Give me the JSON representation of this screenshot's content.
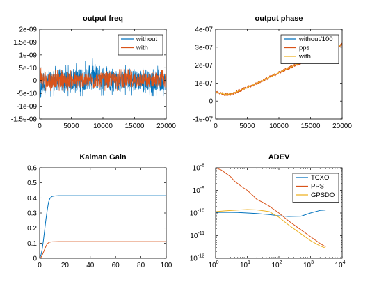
{
  "colors": {
    "blue": "#0072bd",
    "orange": "#d95319",
    "yellow": "#edb120",
    "axis": "#000000",
    "background": "#ffffff"
  },
  "chart_data": [
    {
      "id": "output_freq",
      "type": "line",
      "title": "output freq",
      "xlim": [
        0,
        20000
      ],
      "ylim": [
        -1.5e-09,
        2e-09
      ],
      "xticks": [
        0,
        5000,
        10000,
        15000,
        20000
      ],
      "xtick_labels": [
        "0",
        "5000",
        "10000",
        "15000",
        "20000"
      ],
      "yticks": [
        -1.5e-09,
        -1e-09,
        -5e-10,
        0,
        5e-10,
        1e-09,
        1.5e-09,
        2e-09
      ],
      "ytick_labels": [
        "-1.5e-09",
        "-1e-09",
        "-5e-10",
        "0",
        "5e-10",
        "1e-09",
        "1.5e-09",
        "2e-09"
      ],
      "legend": "top-right",
      "series": [
        {
          "name": "without",
          "color": "#0072bd",
          "description": "noise, initial dip to about -1.3e-09, then amplitude ~±6e-10 with occasional spikes to ~9e-10 near x=9000",
          "envelope": {
            "x": [
              0,
              500,
              2000,
              5000,
              9000,
              12000,
              16000,
              20000
            ],
            "upper": [
              2e-10,
              5e-10,
              5.5e-10,
              6e-10,
              9e-10,
              6e-10,
              6e-10,
              5.5e-10
            ],
            "lower": [
              -1.3e-09,
              -7e-10,
              -6e-10,
              -6e-10,
              -6e-10,
              -5.5e-10,
              -6e-10,
              -6e-10
            ]
          }
        },
        {
          "name": "with",
          "color": "#d95319",
          "description": "noise around 0, initial spike to about 1.1e-09, amplitude ~±4e-10",
          "envelope": {
            "x": [
              0,
              300,
              2000,
              10000,
              20000
            ],
            "upper": [
              1.1e-09,
              5e-10,
              4e-10,
              4.5e-10,
              4e-10
            ],
            "lower": [
              -2e-10,
              -4e-10,
              -4e-10,
              -4e-10,
              -4e-10
            ]
          }
        }
      ]
    },
    {
      "id": "output_phase",
      "type": "line",
      "title": "output phase",
      "xlim": [
        0,
        20000
      ],
      "ylim": [
        -1e-07,
        4e-07
      ],
      "xticks": [
        0,
        5000,
        10000,
        15000,
        20000
      ],
      "xtick_labels": [
        "0",
        "5000",
        "10000",
        "15000",
        "20000"
      ],
      "yticks": [
        -1e-07,
        0,
        1e-07,
        2e-07,
        3e-07,
        4e-07
      ],
      "ytick_labels": [
        "-1e-07",
        "0",
        "1e-07",
        "2e-07",
        "3e-07",
        "4e-07"
      ],
      "legend": "top-right",
      "series": [
        {
          "name": "without/100",
          "color": "#0072bd",
          "x": [],
          "y": []
        },
        {
          "name": "pps",
          "color": "#d95319",
          "x": [
            0,
            500,
            1500,
            2500,
            5000,
            7500,
            10000,
            12500,
            15000,
            17500,
            20000
          ],
          "y": [
            5e-08,
            4.5e-08,
            3.8e-08,
            4e-08,
            7.5e-08,
            1.15e-07,
            1.58e-07,
            2e-07,
            2.35e-07,
            2.75e-07,
            3.15e-07
          ],
          "noise": 8e-09
        },
        {
          "name": "with",
          "color": "#edb120",
          "x": [
            0,
            500,
            1500,
            2500,
            5000,
            7500,
            10000,
            12500,
            15000,
            17500,
            20000
          ],
          "y": [
            5e-08,
            4.5e-08,
            3.8e-08,
            4e-08,
            7.5e-08,
            1.15e-07,
            1.58e-07,
            2e-07,
            2.35e-07,
            2.75e-07,
            3.15e-07
          ]
        }
      ]
    },
    {
      "id": "kalman_gain",
      "type": "line",
      "title": "Kalman Gain",
      "xlim": [
        0,
        100
      ],
      "ylim": [
        0,
        0.6
      ],
      "xticks": [
        0,
        20,
        40,
        60,
        80,
        100
      ],
      "xtick_labels": [
        "0",
        "20",
        "40",
        "60",
        "80",
        "100"
      ],
      "yticks": [
        0,
        0.1,
        0.2,
        0.3,
        0.4,
        0.5,
        0.6
      ],
      "ytick_labels": [
        "0",
        "0.1",
        "0.2",
        "0.3",
        "0.4",
        "0.5",
        "0.6"
      ],
      "series": [
        {
          "color": "#0072bd",
          "x": [
            0,
            1,
            2,
            3,
            4,
            5,
            6,
            7,
            8,
            9,
            10,
            12,
            15,
            20,
            30,
            50,
            100
          ],
          "y": [
            0,
            0.02,
            0.06,
            0.12,
            0.19,
            0.26,
            0.32,
            0.37,
            0.395,
            0.405,
            0.41,
            0.413,
            0.415,
            0.415,
            0.415,
            0.415,
            0.415
          ]
        },
        {
          "color": "#d95319",
          "x": [
            0,
            1,
            2,
            3,
            4,
            5,
            6,
            7,
            8,
            10,
            15,
            20,
            50,
            100
          ],
          "y": [
            0,
            0.005,
            0.02,
            0.04,
            0.06,
            0.08,
            0.095,
            0.103,
            0.107,
            0.109,
            0.11,
            0.11,
            0.11,
            0.11
          ]
        }
      ]
    },
    {
      "id": "adev",
      "type": "line",
      "title": "ADEV",
      "xscale": "log",
      "yscale": "log",
      "xlim": [
        1,
        10000
      ],
      "ylim": [
        1e-12,
        1e-08
      ],
      "xticks": [
        1,
        10,
        100,
        1000,
        10000
      ],
      "xtick_labels": [
        "10^0",
        "10^1",
        "10^2",
        "10^3",
        "10^4"
      ],
      "yticks": [
        1e-12,
        1e-11,
        1e-10,
        1e-09,
        1e-08
      ],
      "ytick_labels": [
        "10^-12",
        "10^-11",
        "10^-10",
        "10^-9",
        "10^-8"
      ],
      "legend": "top-right",
      "series": [
        {
          "name": "TCXO",
          "color": "#0072bd",
          "x": [
            1,
            2,
            5,
            10,
            20,
            50,
            100,
            200,
            500,
            1000,
            2000,
            3000
          ],
          "y": [
            1.05e-10,
            1.07e-10,
            1.05e-10,
            1e-10,
            9.5e-11,
            8.5e-11,
            7.5e-11,
            7e-11,
            7.2e-11,
            1e-10,
            1.3e-10,
            1.35e-10
          ]
        },
        {
          "name": "PPS",
          "color": "#d95319",
          "x": [
            1,
            1.5,
            2,
            3,
            4,
            5,
            7,
            10,
            15,
            20,
            30,
            50,
            100,
            200,
            500,
            1000,
            2000,
            3000
          ],
          "y": [
            1e-08,
            8e-09,
            6e-09,
            4e-09,
            2.5e-09,
            2e-09,
            1.4e-09,
            1e-09,
            6e-10,
            4e-10,
            3e-10,
            2e-10,
            1e-10,
            4.5e-11,
            1.8e-11,
            9e-12,
            4.5e-12,
            3.2e-12
          ]
        },
        {
          "name": "GPSDO",
          "color": "#edb120",
          "x": [
            1,
            2,
            5,
            10,
            20,
            50,
            100,
            200,
            500,
            1000,
            2000,
            3000
          ],
          "y": [
            1.15e-10,
            1.25e-10,
            1.35e-10,
            1.42e-10,
            1.38e-10,
            1.15e-10,
            6.5e-11,
            3e-11,
            1.2e-11,
            6e-12,
            3.5e-12,
            2.8e-12
          ]
        }
      ]
    }
  ]
}
